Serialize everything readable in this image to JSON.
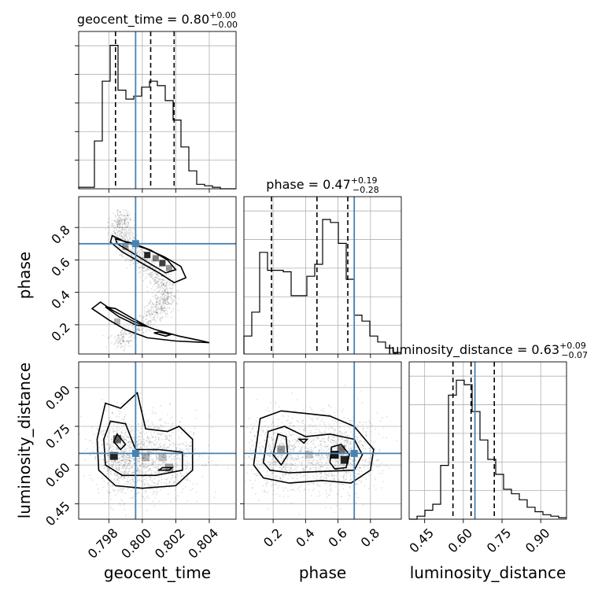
{
  "chart_data": {
    "type": "corner",
    "parameters": [
      "geocent_time",
      "phase",
      "luminosity_distance"
    ],
    "truths": [
      0.7996,
      0.7,
      0.645
    ],
    "ranges": [
      [
        0.7962,
        0.8056
      ],
      [
        0.02,
        0.99
      ],
      [
        0.39,
        1.0
      ]
    ],
    "titles": [
      {
        "name": "geocent_time",
        "median": "0.80",
        "plus": "+0.00",
        "minus": "−0.00"
      },
      {
        "name": "phase",
        "median": "0.47",
        "plus": "+0.19",
        "minus": "−0.28"
      },
      {
        "name": "luminosity_distance",
        "median": "0.63",
        "plus": "+0.09",
        "minus": "−0.07"
      }
    ],
    "ticks": {
      "geocent_time": [
        0.798,
        0.8,
        0.802,
        0.804
      ],
      "phase": [
        0.2,
        0.4,
        0.6,
        0.8
      ],
      "luminosity_distance": [
        0.45,
        0.6,
        0.75,
        0.9
      ]
    },
    "tick_labels": {
      "geocent_time": [
        "0.798",
        "0.800",
        "0.802",
        "0.804"
      ],
      "phase": [
        "0.2",
        "0.4",
        "0.6",
        "0.8"
      ],
      "luminosity_distance": [
        "0.45",
        "0.60",
        "0.75",
        "0.90"
      ]
    },
    "quantiles": {
      "geocent_time": [
        0.7984,
        0.8005,
        0.8019
      ],
      "phase": [
        0.19,
        0.47,
        0.66
      ],
      "luminosity_distance": [
        0.56,
        0.63,
        0.72
      ]
    },
    "histograms": {
      "geocent_time": {
        "edges": [
          0.7962,
          0.79667,
          0.79714,
          0.79761,
          0.79808,
          0.79855,
          0.79902,
          0.79949,
          0.79996,
          0.80043,
          0.8009,
          0.80137,
          0.80184,
          0.80231,
          0.80278,
          0.80325,
          0.80372,
          0.80419,
          0.80466,
          0.80513,
          0.8056
        ],
        "values": [
          0.01,
          0.01,
          0.32,
          0.72,
          0.96,
          0.66,
          0.6,
          0.62,
          0.68,
          0.72,
          0.69,
          0.59,
          0.46,
          0.28,
          0.12,
          0.03,
          0.02,
          0.01,
          0.0,
          0.0
        ]
      },
      "phase": {
        "edges": [
          0.02,
          0.0685,
          0.117,
          0.1655,
          0.214,
          0.2625,
          0.311,
          0.3595,
          0.408,
          0.4565,
          0.505,
          0.5535,
          0.602,
          0.6505,
          0.699,
          0.7475,
          0.796,
          0.8445,
          0.893,
          0.9415,
          0.99
        ],
        "values": [
          0.12,
          0.28,
          0.68,
          0.56,
          0.56,
          0.55,
          0.39,
          0.39,
          0.52,
          0.6,
          0.9,
          0.88,
          0.74,
          0.5,
          0.26,
          0.22,
          0.12,
          0.08,
          0.04,
          0.01
        ]
      },
      "luminosity_distance": {
        "edges": [
          0.39,
          0.4205,
          0.451,
          0.4815,
          0.512,
          0.5425,
          0.573,
          0.6035,
          0.634,
          0.6645,
          0.695,
          0.7255,
          0.756,
          0.7865,
          0.817,
          0.8475,
          0.878,
          0.9085,
          0.939,
          0.9695,
          1.0
        ],
        "values": [
          0.0,
          0.02,
          0.06,
          0.1,
          0.36,
          0.83,
          0.93,
          0.9,
          0.72,
          0.53,
          0.4,
          0.3,
          0.2,
          0.17,
          0.13,
          0.08,
          0.05,
          0.03,
          0.02,
          0.01
        ]
      }
    },
    "contours_2d": [
      {
        "x": "geocent_time",
        "y": "phase",
        "levels": 3
      },
      {
        "x": "geocent_time",
        "y": "luminosity_distance",
        "levels": 3
      },
      {
        "x": "phase",
        "y": "luminosity_distance",
        "levels": 3
      }
    ],
    "grid": true,
    "truth_color": "#4682b4",
    "line_color": "#000000"
  }
}
